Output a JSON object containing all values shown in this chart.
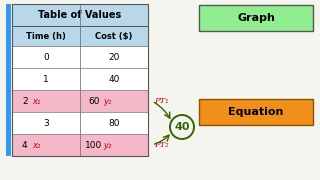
{
  "title": "Table of Values",
  "col1_header": "Time (h)",
  "col2_header": "Cost ($)",
  "rows": [
    [
      0,
      20
    ],
    [
      1,
      40
    ],
    [
      2,
      60
    ],
    [
      3,
      80
    ],
    [
      4,
      100
    ]
  ],
  "highlighted_rows": [
    2,
    4
  ],
  "highlight_color": "#f5b8c8",
  "table_header_bg": "#b8d8ea",
  "graph_box_color": "#90ee90",
  "graph_text": "Graph",
  "equation_box_color": "#f0901a",
  "equation_text": "Equation",
  "annotation_40": "40",
  "pt1_label": "PT₁",
  "pt2_label": "PT₂",
  "x1_label": "x₁",
  "x2_label": "x₂",
  "y1_label": "y₁",
  "y2_label": "y₂",
  "red_color": "#cc0000",
  "green_color": "#336600",
  "blue_border": "#3399ee",
  "bg_color": "#f5f5f0"
}
